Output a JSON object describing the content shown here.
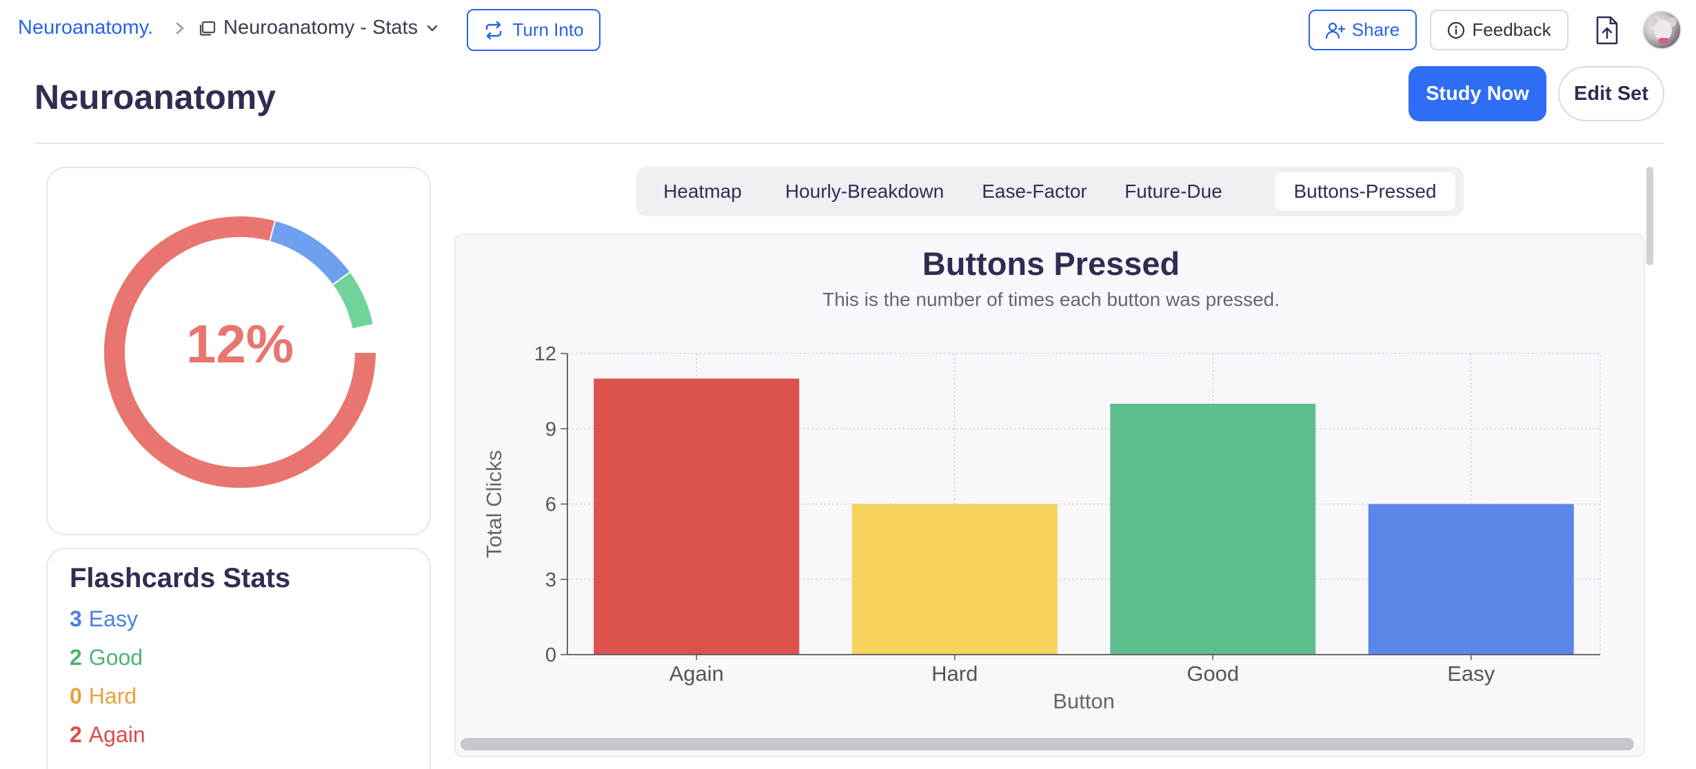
{
  "breadcrumb": {
    "root": "Neuroanatomy.",
    "page": "Neuroanatomy - Stats"
  },
  "toolbar": {
    "turn_into": "Turn Into",
    "share": "Share",
    "feedback": "Feedback"
  },
  "header": {
    "title": "Neuroanatomy",
    "study_now": "Study Now",
    "edit_set": "Edit Set"
  },
  "progress": {
    "percent_label": "12%",
    "segments": [
      {
        "name": "Again",
        "fraction": 0.7917,
        "color": "#e8756f"
      },
      {
        "name": "Easy",
        "fraction": 0.1083,
        "color": "#6fa0f0"
      },
      {
        "name": "Good",
        "fraction": 0.0667,
        "color": "#6fd39a"
      }
    ]
  },
  "flashcard_stats": {
    "title": "Flashcards Stats",
    "rows": [
      {
        "count": "3",
        "label": "Easy",
        "color": "#4a7ee3"
      },
      {
        "count": "2",
        "label": "Good",
        "color": "#4cb474"
      },
      {
        "count": "0",
        "label": "Hard",
        "color": "#e9a23b"
      },
      {
        "count": "2",
        "label": "Again",
        "color": "#dd4c48"
      }
    ]
  },
  "tabs": [
    {
      "label": "Heatmap",
      "active": false
    },
    {
      "label": "Hourly-Breakdown",
      "active": false
    },
    {
      "label": "Ease-Factor",
      "active": false
    },
    {
      "label": "Future-Due",
      "active": false
    },
    {
      "label": "Buttons-Pressed",
      "active": true
    }
  ],
  "chart": {
    "title": "Buttons Pressed",
    "subtitle": "This is the number of times each button was pressed."
  },
  "chart_data": {
    "type": "bar",
    "categories": [
      "Again",
      "Hard",
      "Good",
      "Easy"
    ],
    "values": [
      11,
      6,
      10,
      6
    ],
    "colors": [
      "#dc524c",
      "#f6d25f",
      "#5fbe8d",
      "#5a86ea"
    ],
    "xlabel": "Button",
    "ylabel": "Total Clicks",
    "ylim": [
      0,
      12
    ],
    "yticks": [
      0,
      3,
      6,
      9,
      12
    ],
    "grid": true
  },
  "icons": {
    "breadcrumb_separator": "chevron-right-icon",
    "page": "page-icon",
    "page_menu": "chevron-down-icon",
    "turn_into": "repeat-icon",
    "share": "user-plus-icon",
    "feedback": "info-icon",
    "export": "file-upload-icon"
  }
}
